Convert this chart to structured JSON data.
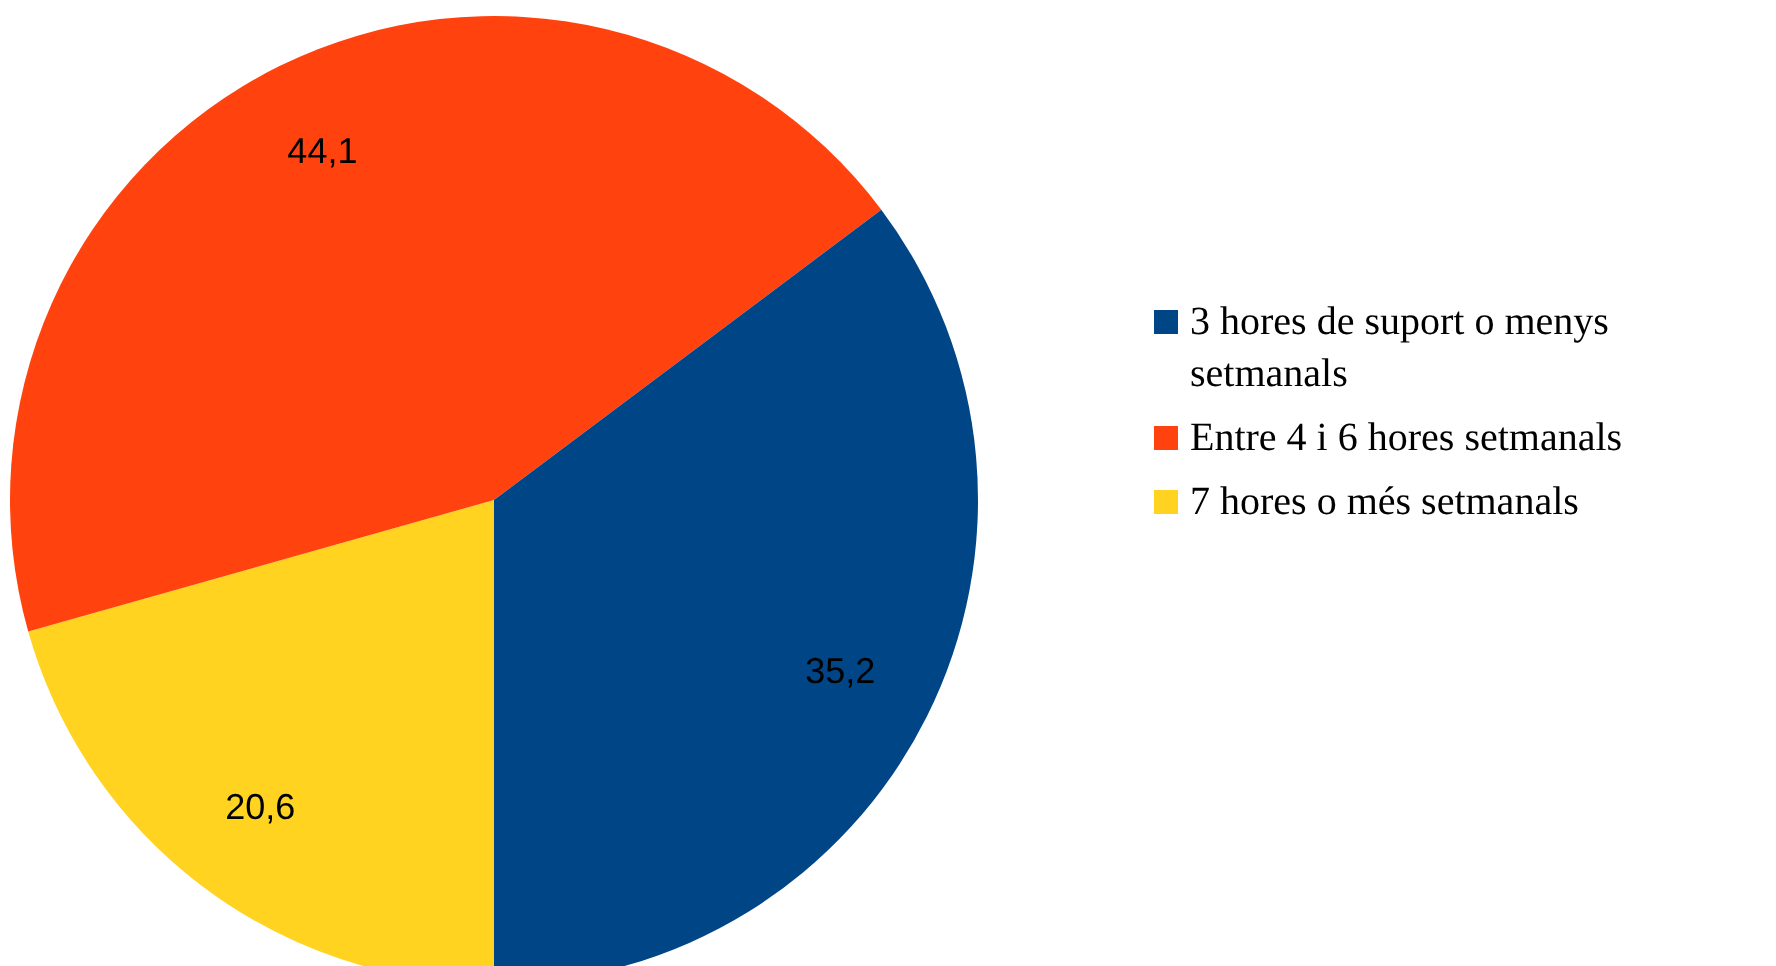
{
  "chart_data": {
    "type": "pie",
    "categories": [
      "3 hores de suport o menys setmanals",
      "Entre 4 i 6 hores setmanals",
      "7 hores o més setmanals"
    ],
    "values": [
      35.2,
      44.1,
      20.6
    ],
    "colors": [
      "#004586",
      "#ff420e",
      "#ffd320"
    ],
    "value_labels": [
      "35,2",
      "44,1",
      "20,6"
    ],
    "legend": "right"
  }
}
